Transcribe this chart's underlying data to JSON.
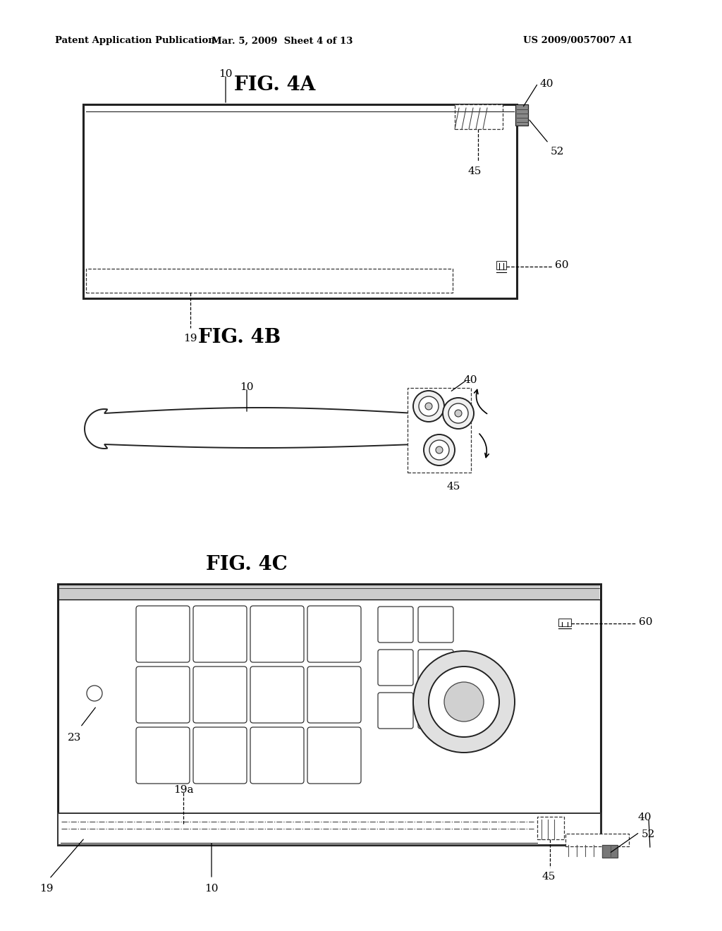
{
  "bg_color": "#ffffff",
  "header_left": "Patent Application Publication",
  "header_mid": "Mar. 5, 2009  Sheet 4 of 13",
  "header_right": "US 2009/0057007 A1"
}
